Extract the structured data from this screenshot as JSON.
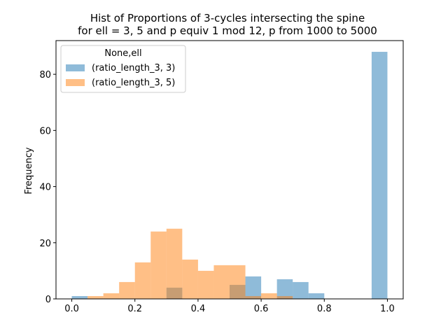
{
  "chart_data": {
    "type": "bar",
    "title_line1": "Hist of Proportions of 3-cycles intersecting the spine",
    "title_line2": "for ell = 3, 5 and p equiv 1 mod 12, p from 1000 to 5000",
    "xlabel": "",
    "ylabel": "Frequency",
    "xlim": [
      -0.05,
      1.05
    ],
    "ylim": [
      0,
      92
    ],
    "xticks": [
      0.0,
      0.2,
      0.4,
      0.6,
      0.8,
      1.0
    ],
    "xtick_labels": [
      "0.0",
      "0.2",
      "0.4",
      "0.6",
      "0.8",
      "1.0"
    ],
    "yticks": [
      0,
      20,
      40,
      60,
      80
    ],
    "ytick_labels": [
      "0",
      "20",
      "40",
      "60",
      "80"
    ],
    "legend": {
      "title": "None,ell",
      "placement": "top-left"
    },
    "series": [
      {
        "name": "(ratio_length_3, 3)",
        "color": "#1f77b4",
        "alpha": 0.5,
        "bins": [
          {
            "x0": 0.0,
            "x1": 0.05,
            "count": 1
          },
          {
            "x0": 0.3,
            "x1": 0.35,
            "count": 4
          },
          {
            "x0": 0.5,
            "x1": 0.55,
            "count": 5
          },
          {
            "x0": 0.55,
            "x1": 0.6,
            "count": 8
          },
          {
            "x0": 0.65,
            "x1": 0.7,
            "count": 7
          },
          {
            "x0": 0.7,
            "x1": 0.75,
            "count": 6
          },
          {
            "x0": 0.75,
            "x1": 0.8,
            "count": 2
          },
          {
            "x0": 0.95,
            "x1": 1.0,
            "count": 88
          }
        ]
      },
      {
        "name": "(ratio_length_3, 5)",
        "color": "#ff7f0e",
        "alpha": 0.5,
        "bins": [
          {
            "x0": 0.05,
            "x1": 0.1,
            "count": 1
          },
          {
            "x0": 0.1,
            "x1": 0.15,
            "count": 2
          },
          {
            "x0": 0.15,
            "x1": 0.2,
            "count": 6
          },
          {
            "x0": 0.2,
            "x1": 0.25,
            "count": 13
          },
          {
            "x0": 0.25,
            "x1": 0.3,
            "count": 24
          },
          {
            "x0": 0.3,
            "x1": 0.35,
            "count": 25
          },
          {
            "x0": 0.35,
            "x1": 0.4,
            "count": 14
          },
          {
            "x0": 0.4,
            "x1": 0.45,
            "count": 10
          },
          {
            "x0": 0.45,
            "x1": 0.5,
            "count": 12
          },
          {
            "x0": 0.5,
            "x1": 0.55,
            "count": 12
          },
          {
            "x0": 0.55,
            "x1": 0.6,
            "count": 1
          },
          {
            "x0": 0.6,
            "x1": 0.65,
            "count": 2
          },
          {
            "x0": 0.65,
            "x1": 0.7,
            "count": 1
          }
        ]
      }
    ]
  }
}
